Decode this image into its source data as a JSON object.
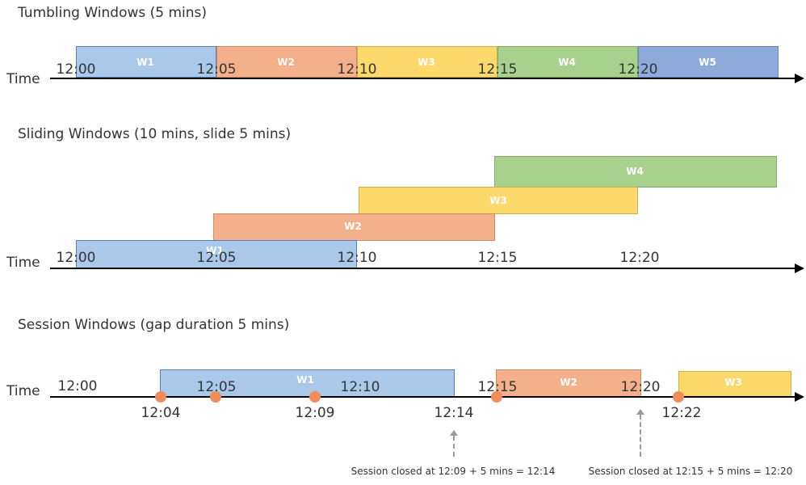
{
  "tumbling": {
    "title": "Tumbling Windows (5 mins)",
    "axis_label": "Time",
    "windows": [
      {
        "label": "W1",
        "color": "#a9c8ea"
      },
      {
        "label": "W2",
        "color": "#f3b08a"
      },
      {
        "label": "W3",
        "color": "#fdd86b"
      },
      {
        "label": "W4",
        "color": "#a9d18e"
      },
      {
        "label": "W5",
        "color": "#8eaadb"
      }
    ],
    "ticks": [
      "12:00",
      "12:05",
      "12:10",
      "12:15",
      "12:20"
    ]
  },
  "sliding": {
    "title": "Sliding Windows (10 mins, slide 5 mins)",
    "axis_label": "Time",
    "windows": [
      {
        "label": "W1",
        "color": "#a9c8ea"
      },
      {
        "label": "W2",
        "color": "#f3b08a"
      },
      {
        "label": "W3",
        "color": "#fdd86b"
      },
      {
        "label": "W4",
        "color": "#a9d18e"
      }
    ],
    "ticks": [
      "12:00",
      "12:05",
      "12:10",
      "12:15",
      "12:20"
    ]
  },
  "session": {
    "title": "Session Windows (gap duration 5 mins)",
    "axis_label": "Time",
    "windows": [
      {
        "label": "W1",
        "color": "#a9c8ea"
      },
      {
        "label": "W2",
        "color": "#f3b08a"
      },
      {
        "label": "W3",
        "color": "#fdd86b"
      }
    ],
    "ticks": [
      "12:00",
      "12:05",
      "12:10",
      "12:15",
      "12:20"
    ],
    "event_times": [
      "12:04",
      "12:09",
      "12:14",
      "12:22"
    ],
    "notes": [
      "Session closed at 12:09 + 5 mins = 12:14",
      "Session closed at 12:15 + 5 mins = 12:20"
    ],
    "event_color": "#f08c5a"
  }
}
